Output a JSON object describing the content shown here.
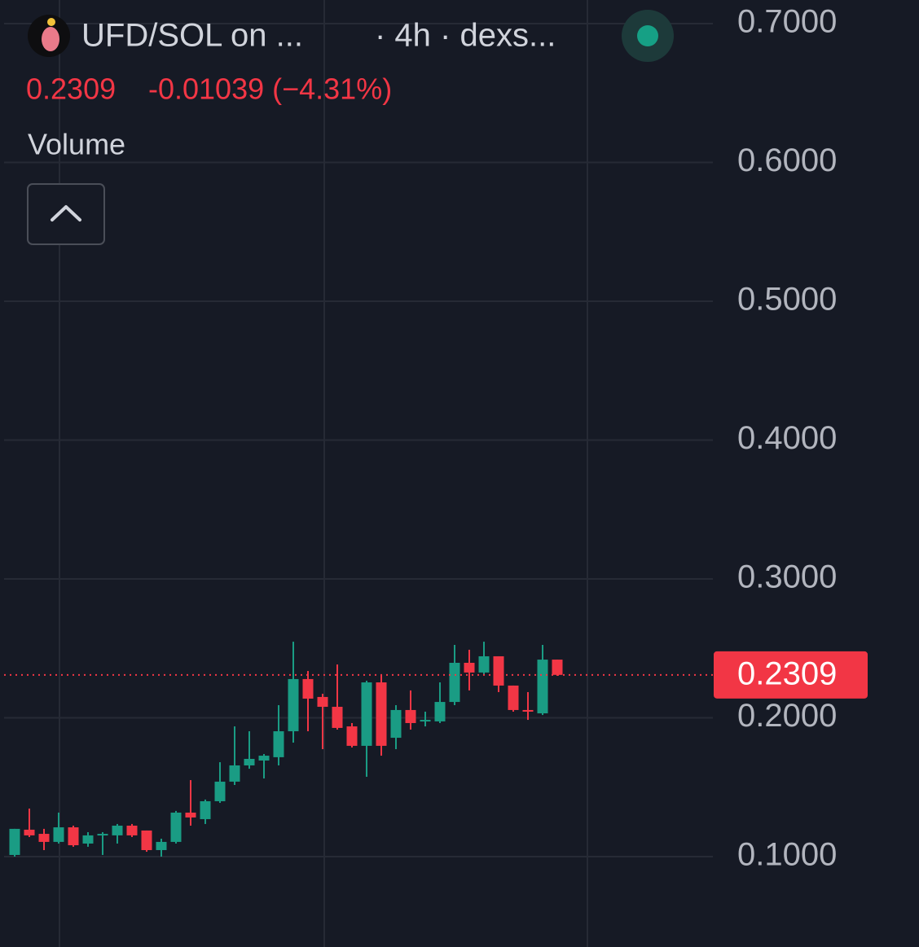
{
  "chart_data": {
    "type": "candlestick",
    "title": "UFD/SOL on ...",
    "interval": "· 4h · dexs...",
    "last_price": {
      "value": 0.2309,
      "label": "0.2309"
    },
    "change": "-0.01039 (−4.31%)",
    "indicator": "Volume",
    "up_color": "#1a9c84",
    "down_color": "#f23645",
    "grid": true,
    "ylim": [
      0.0349,
      0.717
    ],
    "yticks": [
      {
        "value": 0.1,
        "label": "0.1000"
      },
      {
        "value": 0.2,
        "label": "0.2000"
      },
      {
        "value": 0.3,
        "label": "0.3000"
      },
      {
        "value": 0.4,
        "label": "0.4000"
      },
      {
        "value": 0.5,
        "label": "0.5000"
      },
      {
        "value": 0.6,
        "label": "0.6000"
      },
      {
        "value": 0.7,
        "label": "0.7000"
      }
    ],
    "open": [
      0.1012,
      0.1194,
      0.1164,
      0.1106,
      0.1211,
      0.1094,
      0.1153,
      0.1153,
      0.1223,
      0.1188,
      0.1047,
      0.1106,
      0.1317,
      0.127,
      0.1399,
      0.154,
      0.1657,
      0.1692,
      0.1716,
      0.1903,
      0.2279,
      0.215,
      0.2079,
      0.1938,
      0.1798,
      0.2255,
      0.1856,
      0.2056,
      0.1974,
      0.1974,
      0.2114,
      0.2396,
      0.2326,
      0.2443,
      0.2232,
      0.2056,
      0.2032,
      0.2419
    ],
    "high": [
      0.12,
      0.1346,
      0.12,
      0.1317,
      0.1223,
      0.1176,
      0.1176,
      0.1235,
      0.1235,
      0.1188,
      0.1129,
      0.1329,
      0.1551,
      0.1411,
      0.168,
      0.1938,
      0.1903,
      0.1739,
      0.2091,
      0.2548,
      0.2337,
      0.2173,
      0.2384,
      0.1962,
      0.2267,
      0.2314,
      0.2091,
      0.2197,
      0.2044,
      0.2255,
      0.2525,
      0.249,
      0.2548,
      0.2443,
      0.2232,
      0.2185,
      0.2525,
      0.2419
    ],
    "low": [
      0.1,
      0.1141,
      0.1047,
      0.1094,
      0.1071,
      0.1071,
      0.1012,
      0.1094,
      0.1141,
      0.1035,
      0.1,
      0.1094,
      0.1223,
      0.1235,
      0.1387,
      0.1516,
      0.1633,
      0.1563,
      0.1657,
      0.1821,
      0.1903,
      0.1774,
      0.1915,
      0.1786,
      0.1575,
      0.1727,
      0.1774,
      0.1915,
      0.1938,
      0.1962,
      0.2091,
      0.2197,
      0.2314,
      0.2185,
      0.2044,
      0.1985,
      0.202,
      0.2302
    ],
    "close": [
      0.12,
      0.1153,
      0.1106,
      0.1211,
      0.1082,
      0.1153,
      0.1164,
      0.1223,
      0.1153,
      0.1047,
      0.1106,
      0.1317,
      0.1282,
      0.1399,
      0.154,
      0.1657,
      0.1704,
      0.1727,
      0.1903,
      0.2279,
      0.2138,
      0.2079,
      0.1927,
      0.1798,
      0.2255,
      0.1798,
      0.2056,
      0.1962,
      0.1985,
      0.2114,
      0.2396,
      0.2326,
      0.2443,
      0.2232,
      0.2056,
      0.2044,
      0.2419,
      0.2309
    ]
  }
}
